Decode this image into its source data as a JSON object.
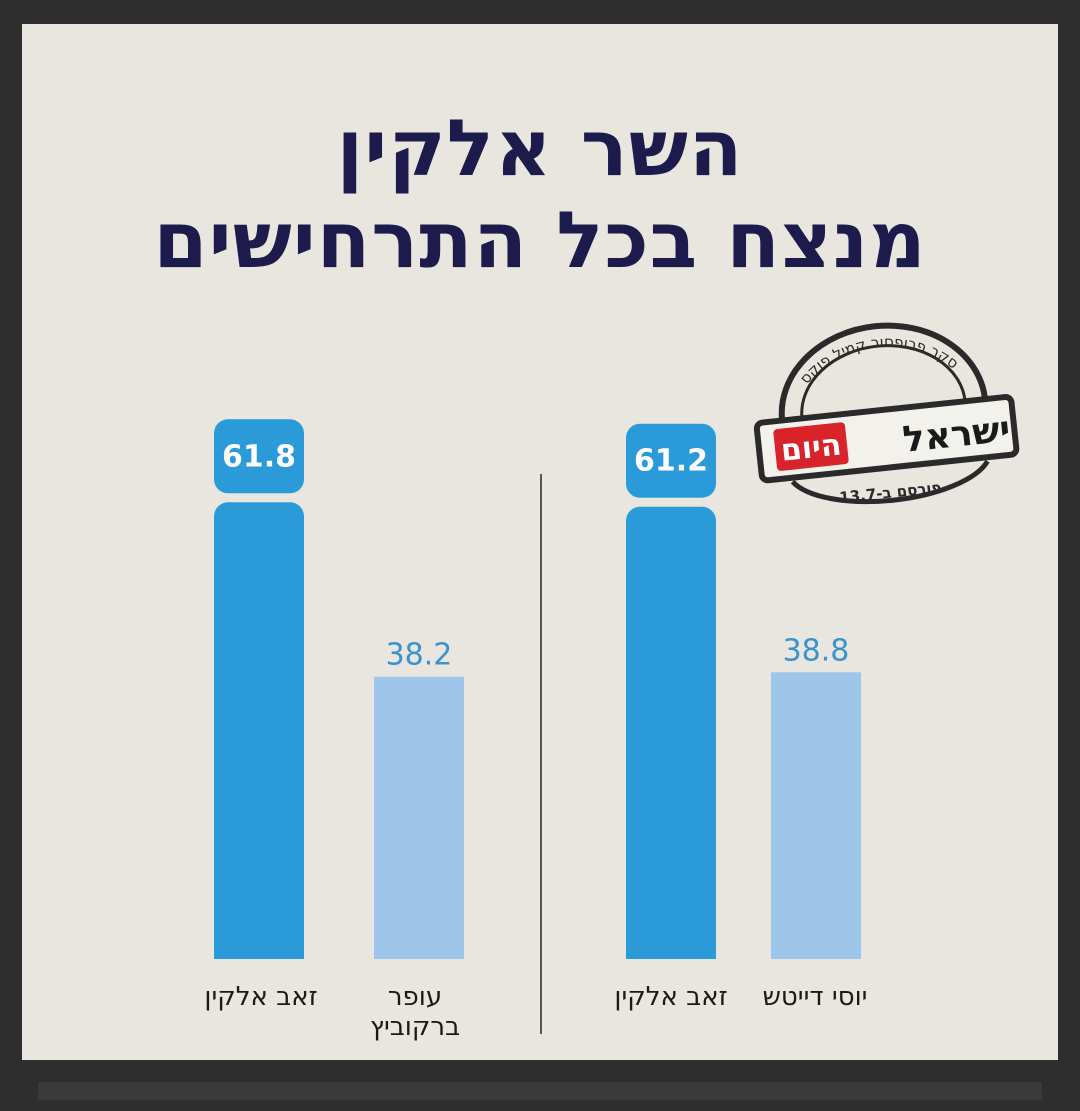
{
  "title": {
    "line1": "השר אלקין",
    "line2": "מנצח בכל התרחישים"
  },
  "stamp": {
    "arc_text": "סקר פרופסור קמיל פוקס",
    "brand_main": "ישראל",
    "brand_accent": "היום",
    "published": "פורסם ב-13.7"
  },
  "colors": {
    "dark_bar": "#2a9ad8",
    "light_bar": "#9ec6ea",
    "title": "#1c1b4c",
    "light_label": "#3a93cf",
    "background": "#e9e6df"
  },
  "chart_data": [
    {
      "type": "bar",
      "categories": [
        "זאב אלקין",
        "עופר ברקוביץ"
      ],
      "values": [
        61.8,
        38.2
      ]
    },
    {
      "type": "bar",
      "categories": [
        "זאב אלקין",
        "יוסי דייטש"
      ],
      "values": [
        61.2,
        38.8
      ]
    }
  ]
}
